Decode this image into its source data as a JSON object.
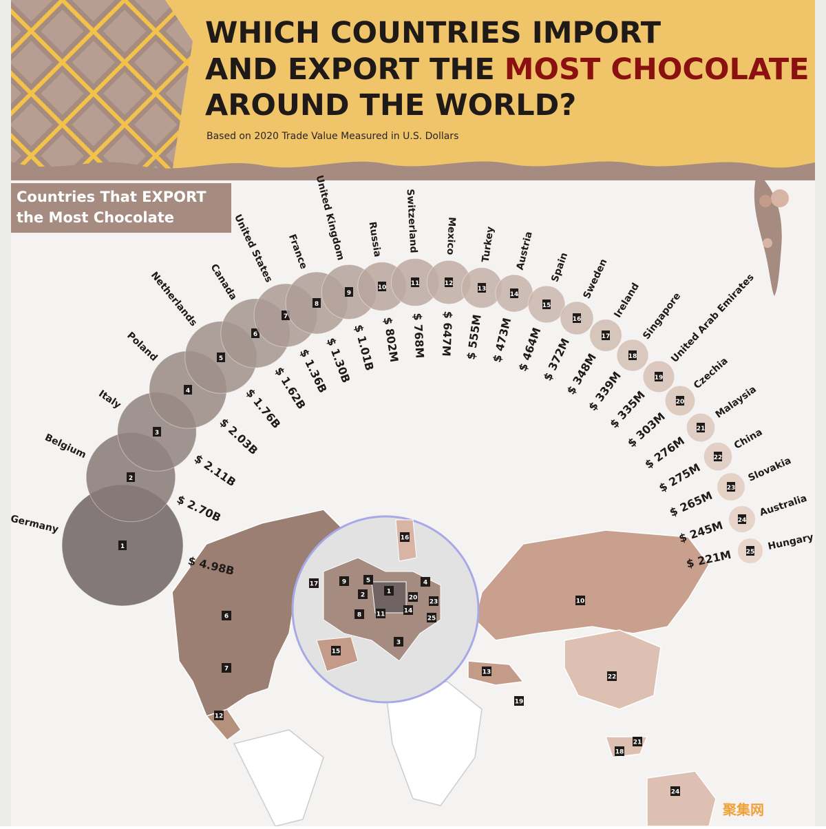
{
  "chart_data": {
    "type": "bubble",
    "title": {
      "line1": "WHICH COUNTRIES IMPORT",
      "line2": "AND EXPORT THE",
      "highlight": "MOST CHOCOLATE",
      "line3": "AROUND THE WORLD?"
    },
    "subtitle": "Based on 2020 Trade Value Measured in U.S. Dollars",
    "section_label": [
      "Countries That EXPORT",
      "the Most Chocolate"
    ],
    "categories": [
      "Germany",
      "Belgium",
      "Italy",
      "Poland",
      "Netherlands",
      "Canada",
      "United States",
      "France",
      "United Kingdom",
      "Russia",
      "Switzerland",
      "Mexico",
      "Turkey",
      "Austria",
      "Spain",
      "Sweden",
      "Ireland",
      "Singapore",
      "United Arab Emirates",
      "Czechia",
      "Malaysia",
      "China",
      "Slovakia",
      "Australia",
      "Hungary"
    ],
    "ranks": [
      1,
      2,
      3,
      4,
      5,
      6,
      7,
      8,
      9,
      10,
      11,
      12,
      13,
      14,
      15,
      16,
      17,
      18,
      19,
      20,
      21,
      22,
      23,
      24,
      25
    ],
    "values": [
      4980000000,
      2700000000,
      2110000000,
      2030000000,
      1760000000,
      1620000000,
      1360000000,
      1300000000,
      1010000000,
      802000000,
      768000000,
      647000000,
      555000000,
      473000000,
      464000000,
      372000000,
      348000000,
      339000000,
      335000000,
      303000000,
      276000000,
      275000000,
      265000000,
      245000000,
      221000000
    ],
    "value_labels": [
      "$ 4.98B",
      "$ 2.70B",
      "$ 2.11B",
      "$ 2.03B",
      "$ 1.76B",
      "$ 1.62B",
      "$ 1.36B",
      "$ 1.30B",
      "$ 1.01B",
      "$ 802M",
      "$ 768M",
      "$ 647M",
      "$ 555M",
      "$ 473M",
      "$ 464M",
      "$ 372M",
      "$ 348M",
      "$ 339M",
      "$ 335M",
      "$ 303M",
      "$ 276M",
      "$ 275M",
      "$ 265M",
      "$ 245M",
      "$ 221M"
    ],
    "watermark": "聚集网"
  }
}
